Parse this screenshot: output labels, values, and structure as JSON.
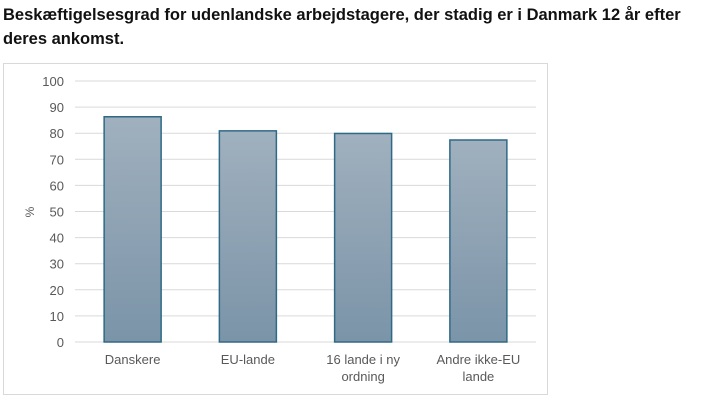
{
  "chart_data": {
    "type": "bar",
    "title": "Beskæftigelsesgrad for udenlandske arbejdstagere, der stadig er i Danmark 12 år efter deres ankomst.",
    "categories": [
      [
        "Danskere"
      ],
      [
        "EU-lande"
      ],
      [
        "16 lande i ny",
        "ordning"
      ],
      [
        "Andre ikke-EU",
        "lande"
      ]
    ],
    "values": [
      86.3,
      80.9,
      79.9,
      77.4
    ],
    "ylabel": "%",
    "xlabel": "",
    "ylim": [
      0,
      100
    ],
    "yticks": [
      0,
      10,
      20,
      30,
      40,
      50,
      60,
      70,
      80,
      90,
      100
    ],
    "grid": true,
    "colors": {
      "bar_top": "#a0b0be",
      "bar_bottom": "#7b94a8",
      "bar_edge": "#2e6a86",
      "grid": "#d9d9d9",
      "text": "#595959"
    }
  }
}
